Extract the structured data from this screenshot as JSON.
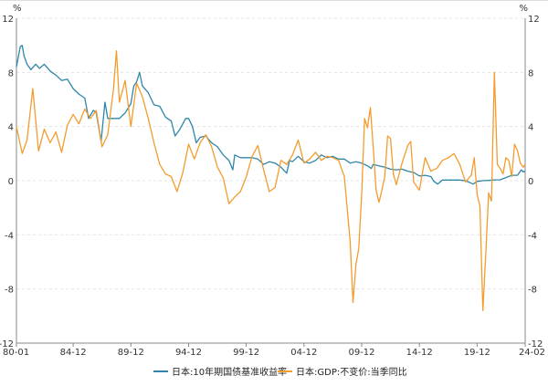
{
  "chart_data": {
    "type": "line",
    "title": "",
    "y_unit_left": "%",
    "y_unit_right": "%",
    "ylim": [
      -12,
      12
    ],
    "yticks": [
      "12",
      "8",
      "4",
      "0",
      "-4",
      "-8",
      "-12"
    ],
    "xticks": [
      "80-01",
      "84-12",
      "89-12",
      "94-12",
      "99-12",
      "04-12",
      "09-12",
      "14-12",
      "19-12",
      "24-02"
    ],
    "grid": true,
    "legend_position": "bottom",
    "series": [
      {
        "name": "日本:10年期国债基准收益率",
        "color": "#2e86ab",
        "points": [
          [
            "1980-01",
            8.4
          ],
          [
            "1980-05",
            9.9
          ],
          [
            "1980-07",
            10.0
          ],
          [
            "1980-09",
            9.2
          ],
          [
            "1980-12",
            8.6
          ],
          [
            "1981-04",
            8.2
          ],
          [
            "1981-09",
            8.6
          ],
          [
            "1982-01",
            8.3
          ],
          [
            "1982-06",
            8.6
          ],
          [
            "1982-12",
            8.1
          ],
          [
            "1983-06",
            7.8
          ],
          [
            "1983-12",
            7.4
          ],
          [
            "1984-06",
            7.5
          ],
          [
            "1984-12",
            6.8
          ],
          [
            "1985-06",
            6.4
          ],
          [
            "1985-12",
            6.1
          ],
          [
            "1986-04",
            4.6
          ],
          [
            "1986-09",
            5.2
          ],
          [
            "1986-12",
            5.0
          ],
          [
            "1987-05",
            2.9
          ],
          [
            "1987-09",
            5.8
          ],
          [
            "1987-12",
            4.6
          ],
          [
            "1988-06",
            4.6
          ],
          [
            "1988-12",
            4.6
          ],
          [
            "1989-06",
            5.0
          ],
          [
            "1989-12",
            5.7
          ],
          [
            "1990-03",
            7.0
          ],
          [
            "1990-06",
            7.3
          ],
          [
            "1990-09",
            8.0
          ],
          [
            "1990-12",
            7.0
          ],
          [
            "1991-06",
            6.5
          ],
          [
            "1991-12",
            5.6
          ],
          [
            "1992-06",
            5.5
          ],
          [
            "1992-12",
            4.7
          ],
          [
            "1993-06",
            4.4
          ],
          [
            "1993-10",
            3.3
          ],
          [
            "1994-03",
            3.8
          ],
          [
            "1994-09",
            4.6
          ],
          [
            "1994-12",
            4.6
          ],
          [
            "1995-04",
            4.0
          ],
          [
            "1995-08",
            2.8
          ],
          [
            "1995-12",
            3.2
          ],
          [
            "1996-06",
            3.3
          ],
          [
            "1996-12",
            2.8
          ],
          [
            "1997-06",
            2.5
          ],
          [
            "1997-12",
            1.9
          ],
          [
            "1998-06",
            1.5
          ],
          [
            "1998-10",
            0.8
          ],
          [
            "1998-12",
            1.9
          ],
          [
            "1999-06",
            1.7
          ],
          [
            "1999-12",
            1.7
          ],
          [
            "2000-06",
            1.7
          ],
          [
            "2000-12",
            1.6
          ],
          [
            "2001-06",
            1.2
          ],
          [
            "2001-12",
            1.4
          ],
          [
            "2002-06",
            1.3
          ],
          [
            "2002-12",
            1.0
          ],
          [
            "2003-06",
            0.55
          ],
          [
            "2003-09",
            1.5
          ],
          [
            "2003-12",
            1.4
          ],
          [
            "2004-06",
            1.8
          ],
          [
            "2004-12",
            1.4
          ],
          [
            "2005-06",
            1.3
          ],
          [
            "2005-12",
            1.5
          ],
          [
            "2006-06",
            1.9
          ],
          [
            "2006-12",
            1.7
          ],
          [
            "2007-06",
            1.8
          ],
          [
            "2007-12",
            1.6
          ],
          [
            "2008-06",
            1.6
          ],
          [
            "2008-12",
            1.3
          ],
          [
            "2009-06",
            1.4
          ],
          [
            "2009-12",
            1.3
          ],
          [
            "2010-06",
            1.1
          ],
          [
            "2010-10",
            0.9
          ],
          [
            "2010-12",
            1.2
          ],
          [
            "2011-06",
            1.1
          ],
          [
            "2011-12",
            1.0
          ],
          [
            "2012-06",
            0.85
          ],
          [
            "2012-12",
            0.8
          ],
          [
            "2013-06",
            0.85
          ],
          [
            "2013-12",
            0.7
          ],
          [
            "2014-06",
            0.6
          ],
          [
            "2014-12",
            0.35
          ],
          [
            "2015-06",
            0.4
          ],
          [
            "2015-12",
            0.3
          ],
          [
            "2016-03",
            -0.05
          ],
          [
            "2016-07",
            -0.25
          ],
          [
            "2016-12",
            0.05
          ],
          [
            "2017-06",
            0.05
          ],
          [
            "2017-12",
            0.05
          ],
          [
            "2018-06",
            0.05
          ],
          [
            "2018-12",
            0.0
          ],
          [
            "2019-08",
            -0.25
          ],
          [
            "2019-12",
            -0.05
          ],
          [
            "2020-06",
            0.0
          ],
          [
            "2020-12",
            0.02
          ],
          [
            "2021-06",
            0.06
          ],
          [
            "2021-12",
            0.07
          ],
          [
            "2022-06",
            0.23
          ],
          [
            "2022-12",
            0.4
          ],
          [
            "2023-06",
            0.4
          ],
          [
            "2023-10",
            0.8
          ],
          [
            "2023-12",
            0.65
          ],
          [
            "2024-02",
            0.7
          ]
        ]
      },
      {
        "name": "日本:GDP:不变价:当季同比",
        "color": "#f39c2e",
        "points": [
          [
            "1980-01",
            4.0
          ],
          [
            "1980-07",
            2.0
          ],
          [
            "1980-12",
            3.0
          ],
          [
            "1981-06",
            6.8
          ],
          [
            "1981-12",
            2.2
          ],
          [
            "1982-06",
            3.8
          ],
          [
            "1982-12",
            2.8
          ],
          [
            "1983-06",
            3.6
          ],
          [
            "1983-12",
            2.1
          ],
          [
            "1984-06",
            4.1
          ],
          [
            "1984-12",
            4.9
          ],
          [
            "1985-06",
            4.2
          ],
          [
            "1985-12",
            5.3
          ],
          [
            "1986-06",
            4.6
          ],
          [
            "1986-12",
            5.2
          ],
          [
            "1987-06",
            2.5
          ],
          [
            "1987-12",
            3.4
          ],
          [
            "1988-06",
            6.8
          ],
          [
            "1988-09",
            9.6
          ],
          [
            "1988-12",
            5.8
          ],
          [
            "1989-06",
            7.4
          ],
          [
            "1989-12",
            4.0
          ],
          [
            "1990-06",
            7.2
          ],
          [
            "1990-12",
            6.2
          ],
          [
            "1991-06",
            4.6
          ],
          [
            "1991-12",
            2.8
          ],
          [
            "1992-06",
            1.2
          ],
          [
            "1992-12",
            0.5
          ],
          [
            "1993-06",
            0.3
          ],
          [
            "1993-12",
            -0.8
          ],
          [
            "1994-06",
            0.6
          ],
          [
            "1994-12",
            2.7
          ],
          [
            "1995-06",
            1.6
          ],
          [
            "1995-12",
            2.8
          ],
          [
            "1996-06",
            3.4
          ],
          [
            "1996-12",
            2.5
          ],
          [
            "1997-06",
            1.0
          ],
          [
            "1997-12",
            0.2
          ],
          [
            "1998-06",
            -1.7
          ],
          [
            "1998-12",
            -1.2
          ],
          [
            "1999-06",
            -0.8
          ],
          [
            "1999-12",
            0.3
          ],
          [
            "2000-06",
            1.8
          ],
          [
            "2000-12",
            2.6
          ],
          [
            "2001-06",
            0.8
          ],
          [
            "2001-12",
            -0.8
          ],
          [
            "2002-06",
            -0.5
          ],
          [
            "2002-12",
            1.5
          ],
          [
            "2003-06",
            1.2
          ],
          [
            "2003-12",
            1.9
          ],
          [
            "2004-06",
            3.0
          ],
          [
            "2004-12",
            1.3
          ],
          [
            "2005-06",
            1.6
          ],
          [
            "2005-12",
            2.1
          ],
          [
            "2006-06",
            1.5
          ],
          [
            "2006-12",
            1.8
          ],
          [
            "2007-06",
            1.7
          ],
          [
            "2007-12",
            1.5
          ],
          [
            "2008-06",
            0.3
          ],
          [
            "2008-12",
            -4.5
          ],
          [
            "2009-03",
            -9.0
          ],
          [
            "2009-06",
            -6.2
          ],
          [
            "2009-09",
            -5.0
          ],
          [
            "2009-12",
            -1.0
          ],
          [
            "2010-03",
            4.6
          ],
          [
            "2010-06",
            3.9
          ],
          [
            "2010-09",
            5.4
          ],
          [
            "2010-12",
            2.5
          ],
          [
            "2011-03",
            -0.7
          ],
          [
            "2011-06",
            -1.6
          ],
          [
            "2011-09",
            -0.7
          ],
          [
            "2011-12",
            0.3
          ],
          [
            "2012-03",
            3.3
          ],
          [
            "2012-06",
            3.1
          ],
          [
            "2012-09",
            0.5
          ],
          [
            "2012-12",
            -0.3
          ],
          [
            "2013-06",
            1.3
          ],
          [
            "2013-12",
            2.6
          ],
          [
            "2014-03",
            2.9
          ],
          [
            "2014-06",
            -0.1
          ],
          [
            "2014-12",
            -0.7
          ],
          [
            "2015-06",
            1.7
          ],
          [
            "2015-12",
            0.7
          ],
          [
            "2016-06",
            0.9
          ],
          [
            "2016-12",
            1.5
          ],
          [
            "2017-06",
            1.7
          ],
          [
            "2017-12",
            2.0
          ],
          [
            "2018-06",
            1.2
          ],
          [
            "2018-12",
            -0.1
          ],
          [
            "2019-06",
            0.4
          ],
          [
            "2019-09",
            1.7
          ],
          [
            "2019-12",
            -1.0
          ],
          [
            "2020-03",
            -1.9
          ],
          [
            "2020-06",
            -9.6
          ],
          [
            "2020-09",
            -5.5
          ],
          [
            "2020-12",
            -0.9
          ],
          [
            "2021-03",
            -1.5
          ],
          [
            "2021-06",
            8.0
          ],
          [
            "2021-09",
            1.2
          ],
          [
            "2021-12",
            0.9
          ],
          [
            "2022-03",
            0.5
          ],
          [
            "2022-06",
            1.7
          ],
          [
            "2022-09",
            1.5
          ],
          [
            "2022-12",
            0.3
          ],
          [
            "2023-03",
            2.7
          ],
          [
            "2023-06",
            2.2
          ],
          [
            "2023-09",
            1.3
          ],
          [
            "2023-12",
            1.0
          ],
          [
            "2024-02",
            1.2
          ]
        ]
      }
    ]
  }
}
